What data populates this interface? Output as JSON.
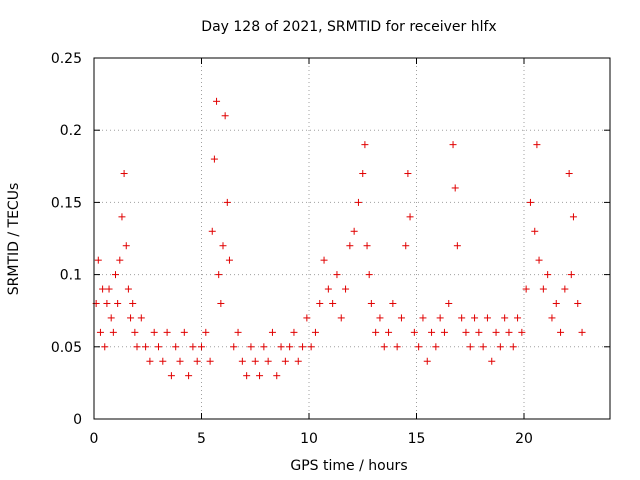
{
  "chart_data": {
    "type": "scatter",
    "title": "Day 128 of 2021, SRMTID for receiver hlfx",
    "xlabel": "GPS time / hours",
    "ylabel": "SRMTID / TECUs",
    "xlim": [
      0,
      24
    ],
    "ylim": [
      0,
      0.25
    ],
    "xticks": [
      0,
      5,
      10,
      15,
      20
    ],
    "yticks": [
      0,
      0.05,
      0.1,
      0.15,
      0.2,
      0.25
    ],
    "xtick_labels": [
      "0",
      "5",
      "10",
      "15",
      "20"
    ],
    "ytick_labels": [
      "0",
      "0.05",
      "0.1",
      "0.15",
      "0.2",
      "0.25"
    ],
    "grid": true,
    "marker": "+",
    "color": "#e00000",
    "series": [
      {
        "name": "SRMTID",
        "x": [
          0.1,
          0.2,
          0.3,
          0.4,
          0.5,
          0.6,
          0.7,
          0.8,
          0.9,
          1.0,
          1.1,
          1.2,
          1.3,
          1.4,
          1.5,
          1.6,
          1.7,
          1.8,
          1.9,
          2.0,
          2.2,
          2.4,
          2.6,
          2.8,
          3.0,
          3.2,
          3.4,
          3.6,
          3.8,
          4.0,
          4.2,
          4.4,
          4.6,
          4.8,
          5.0,
          5.2,
          5.4,
          5.5,
          5.6,
          5.7,
          5.8,
          5.9,
          6.0,
          6.1,
          6.2,
          6.3,
          6.5,
          6.7,
          6.9,
          7.1,
          7.3,
          7.5,
          7.7,
          7.9,
          8.1,
          8.3,
          8.5,
          8.7,
          8.9,
          9.1,
          9.3,
          9.5,
          9.7,
          9.9,
          10.1,
          10.3,
          10.5,
          10.7,
          10.9,
          11.1,
          11.3,
          11.5,
          11.7,
          11.9,
          12.1,
          12.3,
          12.5,
          12.6,
          12.7,
          12.8,
          12.9,
          13.1,
          13.3,
          13.5,
          13.7,
          13.9,
          14.1,
          14.3,
          14.5,
          14.6,
          14.7,
          14.9,
          15.1,
          15.3,
          15.5,
          15.7,
          15.9,
          16.1,
          16.3,
          16.5,
          16.7,
          16.8,
          16.9,
          17.1,
          17.3,
          17.5,
          17.7,
          17.9,
          18.1,
          18.3,
          18.5,
          18.7,
          18.9,
          19.1,
          19.3,
          19.5,
          19.7,
          19.9,
          20.1,
          20.3,
          20.5,
          20.6,
          20.7,
          20.9,
          21.1,
          21.3,
          21.5,
          21.7,
          21.9,
          22.1,
          22.2,
          22.3,
          22.5,
          22.7
        ],
        "y": [
          0.08,
          0.11,
          0.06,
          0.09,
          0.05,
          0.08,
          0.09,
          0.07,
          0.06,
          0.1,
          0.08,
          0.11,
          0.14,
          0.17,
          0.12,
          0.09,
          0.07,
          0.08,
          0.06,
          0.05,
          0.07,
          0.05,
          0.04,
          0.06,
          0.05,
          0.04,
          0.06,
          0.03,
          0.05,
          0.04,
          0.06,
          0.03,
          0.05,
          0.04,
          0.05,
          0.06,
          0.04,
          0.13,
          0.18,
          0.22,
          0.1,
          0.08,
          0.12,
          0.21,
          0.15,
          0.11,
          0.05,
          0.06,
          0.04,
          0.03,
          0.05,
          0.04,
          0.03,
          0.05,
          0.04,
          0.06,
          0.03,
          0.05,
          0.04,
          0.05,
          0.06,
          0.04,
          0.05,
          0.07,
          0.05,
          0.06,
          0.08,
          0.11,
          0.09,
          0.08,
          0.1,
          0.07,
          0.09,
          0.12,
          0.13,
          0.15,
          0.17,
          0.19,
          0.12,
          0.1,
          0.08,
          0.06,
          0.07,
          0.05,
          0.06,
          0.08,
          0.05,
          0.07,
          0.12,
          0.17,
          0.14,
          0.06,
          0.05,
          0.07,
          0.04,
          0.06,
          0.05,
          0.07,
          0.06,
          0.08,
          0.19,
          0.16,
          0.12,
          0.07,
          0.06,
          0.05,
          0.07,
          0.06,
          0.05,
          0.07,
          0.04,
          0.06,
          0.05,
          0.07,
          0.06,
          0.05,
          0.07,
          0.06,
          0.09,
          0.15,
          0.13,
          0.19,
          0.11,
          0.09,
          0.1,
          0.07,
          0.08,
          0.06,
          0.09,
          0.17,
          0.1,
          0.14,
          0.08,
          0.06
        ]
      }
    ]
  }
}
